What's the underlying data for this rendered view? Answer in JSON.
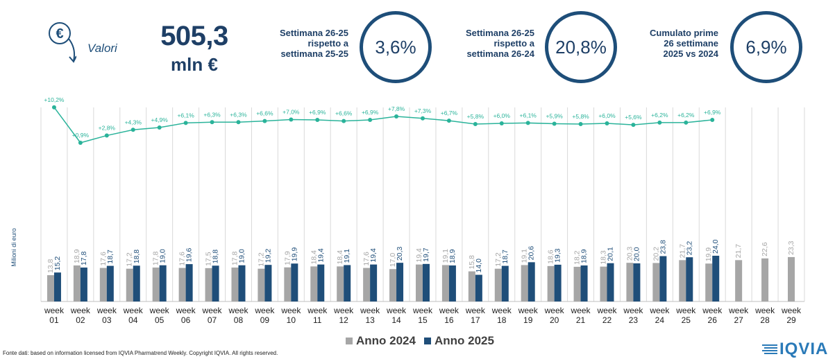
{
  "header": {
    "section_label": "Valori",
    "total_value": "505,3",
    "total_unit": "mln €"
  },
  "kpis": [
    {
      "label_lines": [
        "Settimana 26-25",
        "rispetto a",
        "settimana 25-25"
      ],
      "value": "3,6%"
    },
    {
      "label_lines": [
        "Settimana 26-25",
        "rispetto a",
        "settimana 26-24"
      ],
      "value": "20,8%"
    },
    {
      "label_lines": [
        "Cumulato prime",
        "26 settimane",
        "2025 vs 2024"
      ],
      "value": "6,9%"
    }
  ],
  "chart_data": {
    "type": "bar",
    "title": "",
    "ylabel": "Milioni di euro",
    "categories": [
      "week\n01",
      "week\n02",
      "week\n03",
      "week\n04",
      "week\n05",
      "week\n06",
      "week\n07",
      "week\n08",
      "week\n09",
      "week\n10",
      "week\n11",
      "week\n12",
      "week\n13",
      "week\n14",
      "week\n15",
      "week\n16",
      "week\n17",
      "week\n18",
      "week\n19",
      "week\n20",
      "week\n21",
      "week\n22",
      "week\n23",
      "week\n24",
      "week\n25",
      "week\n26",
      "week\n27",
      "week\n28",
      "week\n29"
    ],
    "series": [
      {
        "name": "Anno 2024",
        "color": "#a6a6a6",
        "values": [
          13.8,
          18.9,
          17.6,
          17.2,
          17.8,
          17.6,
          17.5,
          17.8,
          17.2,
          17.9,
          18.4,
          18.4,
          17.6,
          17.0,
          19.4,
          19.1,
          15.8,
          17.2,
          19.1,
          18.6,
          18.2,
          18.3,
          20.3,
          20.2,
          21.7,
          19.9,
          21.7,
          22.6,
          23.3
        ],
        "labels": [
          "13,8",
          "18,9",
          "17,6",
          "17,2",
          "17,8",
          "17,6",
          "17,5",
          "17,8",
          "17,2",
          "17,9",
          "18,4",
          "18,4",
          "17,6",
          "17,0",
          "19,4",
          "19,1",
          "15,8",
          "17,2",
          "19,1",
          "18,6",
          "18,2",
          "18,3",
          "20,3",
          "20,2",
          "21,7",
          "19,9",
          "21,7",
          "22,6",
          "23,3"
        ]
      },
      {
        "name": "Anno 2025",
        "color": "#1f4e79",
        "values": [
          15.2,
          17.8,
          18.7,
          18.8,
          19.0,
          19.6,
          18.8,
          19.0,
          19.2,
          19.9,
          19.4,
          19.1,
          19.4,
          20.3,
          19.7,
          18.9,
          14.0,
          18.7,
          20.6,
          19.3,
          18.9,
          20.1,
          20.0,
          23.8,
          23.2,
          24.0,
          null,
          null,
          null
        ],
        "labels": [
          "15,2",
          "17,8",
          "18,7",
          "18,8",
          "19,0",
          "19,6",
          "18,8",
          "19,0",
          "19,2",
          "19,9",
          "19,4",
          "19,1",
          "19,4",
          "20,3",
          "19,7",
          "18,9",
          "14,0",
          "18,7",
          "20,6",
          "19,3",
          "18,9",
          "20,1",
          "20,0",
          "23,8",
          "23,2",
          "24,0",
          "",
          "",
          ""
        ]
      }
    ],
    "growth_line": {
      "color": "#2ab39a",
      "values": [
        10.2,
        0.9,
        2.8,
        4.3,
        4.9,
        6.1,
        6.3,
        6.3,
        6.6,
        7.0,
        6.9,
        6.6,
        6.9,
        7.8,
        7.3,
        6.7,
        5.8,
        6.0,
        6.1,
        5.9,
        5.8,
        6.0,
        5.6,
        6.2,
        6.2,
        6.9
      ],
      "labels": [
        "+10,2%",
        "+0,9%",
        "+2,8%",
        "+4,3%",
        "+4,9%",
        "+6,1%",
        "+6,3%",
        "+6,3%",
        "+6,6%",
        "+7,0%",
        "+6,9%",
        "+6,6%",
        "+6,9%",
        "+7,8%",
        "+7,3%",
        "+6,7%",
        "+5,8%",
        "+6,0%",
        "+6,1%",
        "+5,9%",
        "+5,8%",
        "+6,0%",
        "+5,6%",
        "+6,2%",
        "+6,2%",
        "+6,9%"
      ]
    },
    "legend_position": "bottom"
  },
  "footnote": "Fonte dati: based on information licensed from IQVIA Pharmatrend Weekly. Copyright IQVIA. All rights reserved.",
  "logo_text": "IQVIA"
}
